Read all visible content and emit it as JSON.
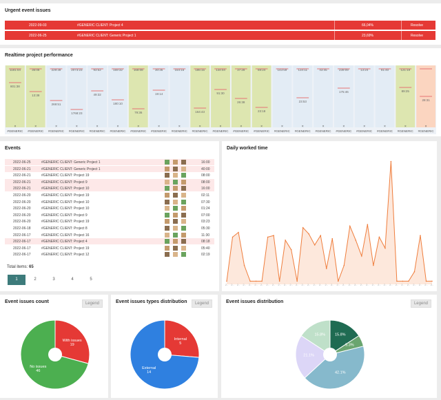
{
  "urgent": {
    "title": "Urgent event issues",
    "rows": [
      {
        "date": "2022-09-03",
        "project": "#GENERIC CLIENT: Project 4",
        "percent": "66,04%",
        "action": "Resolve"
      },
      {
        "date": "2022-06-25",
        "project": "#GENERIC CLIENT: Generic Project 1",
        "percent": "23,69%",
        "action": "Resolve"
      }
    ]
  },
  "realtime": {
    "title": "Realtime project performance",
    "columns": [
      {
        "top": "1181:04",
        "mid": "801:38",
        "color": "#dde6b0",
        "fill": 1.0,
        "axis": "#GENERIC"
      },
      {
        "top": "36:08",
        "mid": "13:38",
        "color": "#dde6b0",
        "fill": 1.0,
        "axis": "#GENERIC"
      },
      {
        "top": "229:38",
        "mid": "269:51",
        "color": "#e3ecf5",
        "fill": 1.0,
        "axis": "#GENERIC"
      },
      {
        "top": "2073:23",
        "mid": "1768:23",
        "color": "#e3ecf5",
        "fill": 1.0,
        "axis": "#GENERIC"
      },
      {
        "top": "93:52",
        "mid": "49:32",
        "color": "#e3ecf5",
        "fill": 1.0,
        "axis": "#GENERIC"
      },
      {
        "top": "169:32",
        "mid": "180:10",
        "color": "#e3ecf5",
        "fill": 1.0,
        "axis": "#GENERIC"
      },
      {
        "top": "168:08",
        "mid": "79:36",
        "color": "#dde6b0",
        "fill": 1.0,
        "axis": "#GENERIC"
      },
      {
        "top": "30:36",
        "mid": "19:14",
        "color": "#e3ecf5",
        "fill": 1.0,
        "axis": "#GENERIC"
      },
      {
        "top": "164:16",
        "mid": "",
        "color": "#e3ecf5",
        "fill": 1.0,
        "axis": "#GENERIC"
      },
      {
        "top": "186:15",
        "mid": "164:43",
        "color": "#dde6b0",
        "fill": 1.0,
        "axis": "#GENERIC"
      },
      {
        "top": "134:04",
        "mid": "91:30",
        "color": "#dde6b0",
        "fill": 1.0,
        "axis": "#GENERIC"
      },
      {
        "top": "37:28",
        "mid": "26:38",
        "color": "#dde6b0",
        "fill": 1.0,
        "axis": "#GENERIC"
      },
      {
        "top": "69:24",
        "mid": "23:18",
        "color": "#dde6b0",
        "fill": 1.0,
        "axis": "#GENERIC"
      },
      {
        "top": "143:59",
        "mid": "",
        "color": "#e3ecf5",
        "fill": 1.0,
        "axis": "#GENERIC"
      },
      {
        "top": "134:11",
        "mid": "23:53",
        "color": "#e3ecf5",
        "fill": 1.0,
        "axis": "#GENERIC"
      },
      {
        "top": "43:45",
        "mid": "",
        "color": "#e3ecf5",
        "fill": 1.0,
        "axis": "#GENERIC"
      },
      {
        "top": "239:09",
        "mid": "175:46",
        "color": "#e3ecf5",
        "fill": 1.0,
        "axis": "#GENERIC"
      },
      {
        "top": "13:24",
        "mid": "",
        "color": "#e3ecf5",
        "fill": 1.0,
        "axis": "#GENERIC"
      },
      {
        "top": "81:40",
        "mid": "",
        "color": "#e3ecf5",
        "fill": 1.0,
        "axis": "#GENERIC"
      },
      {
        "top": "121:19",
        "mid": "89:25",
        "color": "#dde6b0",
        "fill": 1.0,
        "axis": "#GENERIC"
      },
      {
        "top": "",
        "mid": "28:31",
        "color": "#fbd5c0",
        "fill": 1.0,
        "axis": "#GENERIC"
      }
    ]
  },
  "events": {
    "title": "Events",
    "rows": [
      {
        "date": "2022-06-25",
        "project": "#GENERIC CLIENT: Generic Project 1",
        "time": "16:00",
        "pink": true
      },
      {
        "date": "2022-06-21",
        "project": "#GENERIC CLIENT: Generic Project 1",
        "time": "40:00",
        "pink": true
      },
      {
        "date": "2022-06-21",
        "project": "#GENERIC CLIENT: Project 19",
        "time": "08:00",
        "pink": false
      },
      {
        "date": "2022-06-21",
        "project": "#GENERIC CLIENT: Project 9",
        "time": "08:00",
        "pink": true
      },
      {
        "date": "2022-06-21",
        "project": "#GENERIC CLIENT: Project 10",
        "time": "16:00",
        "pink": true
      },
      {
        "date": "2022-06-20",
        "project": "#GENERIC CLIENT: Project 19",
        "time": "02:11",
        "pink": false
      },
      {
        "date": "2022-06-20",
        "project": "#GENERIC CLIENT: Project 10",
        "time": "07:30",
        "pink": false
      },
      {
        "date": "2022-06-20",
        "project": "#GENERIC CLIENT: Project 10",
        "time": "01:24",
        "pink": false
      },
      {
        "date": "2022-06-20",
        "project": "#GENERIC CLIENT: Project 9",
        "time": "07:00",
        "pink": false
      },
      {
        "date": "2022-06-20",
        "project": "#GENERIC CLIENT: Project 19",
        "time": "03:23",
        "pink": false
      },
      {
        "date": "2022-06-18",
        "project": "#GENERIC CLIENT: Project 8",
        "time": "05:30",
        "pink": false
      },
      {
        "date": "2022-06-17",
        "project": "#GENERIC CLIENT: Project 16",
        "time": "11:30",
        "pink": false
      },
      {
        "date": "2022-06-17",
        "project": "#GENERIC CLIENT: Project 4",
        "time": "08:18",
        "pink": true
      },
      {
        "date": "2022-06-17",
        "project": "#GENERIC CLIENT: Project 19",
        "time": "05:40",
        "pink": false
      },
      {
        "date": "2022-06-17",
        "project": "#GENERIC CLIENT: Project 12",
        "time": "02:19",
        "pink": false
      }
    ],
    "total_label": "Total items:",
    "total_value": "65",
    "pages": [
      "1",
      "2",
      "3",
      "4",
      "5"
    ],
    "active_page": "1"
  },
  "daily": {
    "title": "Daily worked time",
    "values": [
      2,
      30,
      33,
      12,
      2,
      2,
      2,
      30,
      31,
      2,
      28,
      22,
      2,
      36,
      32,
      25,
      31,
      10,
      29,
      2,
      12,
      37,
      28,
      18,
      38,
      12,
      30,
      23,
      78,
      2,
      2,
      2,
      8,
      31,
      2,
      2
    ]
  },
  "issues_count": {
    "title": "Event issues count",
    "legend": "Legend",
    "slices": [
      {
        "label": "With issues",
        "value": 19,
        "color": "#e53935"
      },
      {
        "label": "No issues",
        "value": 46,
        "color": "#4caf50"
      }
    ]
  },
  "issues_types": {
    "title": "Event issues types distribution",
    "legend": "Legend",
    "slices": [
      {
        "label": "Internal",
        "value": 5,
        "color": "#e53935"
      },
      {
        "label": "External",
        "value": 14,
        "color": "#2f80e0"
      }
    ]
  },
  "issues_dist": {
    "title": "Event issues distribution",
    "legend": "Legend",
    "slices": [
      {
        "label": "15.8%",
        "value": 15.8,
        "color": "#1f6b52"
      },
      {
        "label": "5.3%",
        "value": 5.3,
        "color": "#6aa56f"
      },
      {
        "label": "42.1%",
        "value": 42.1,
        "color": "#86b9cc"
      },
      {
        "label": "21.1%",
        "value": 21.1,
        "color": "#dcd6f7"
      },
      {
        "label": "15.8%",
        "value": 15.8,
        "color": "#bfe0c9"
      }
    ]
  },
  "colors": {
    "accent": "#3d7b7b",
    "red": "#e53935",
    "line": "#ef7d3c"
  }
}
